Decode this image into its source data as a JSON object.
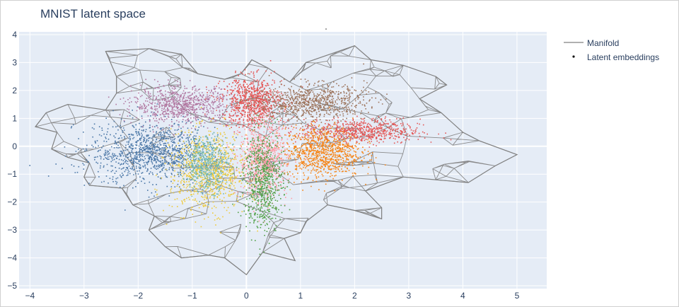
{
  "chart_data": {
    "type": "scatter",
    "title": "MNIST latent space",
    "xlabel": "",
    "ylabel": "",
    "xlim": [
      -4.2,
      5.55
    ],
    "ylim": [
      -5.1,
      4.1
    ],
    "xticks": [
      -4,
      -3,
      -2,
      -1,
      0,
      1,
      2,
      3,
      4,
      5
    ],
    "yticks": [
      -5,
      -4,
      -3,
      -2,
      -1,
      0,
      1,
      2,
      3,
      4
    ],
    "grid": true,
    "legend_position": "top-right",
    "series": [
      {
        "name": "Manifold",
        "mode": "lines",
        "color": "#808080",
        "outline": [
          [
            -3.7,
            1.2
          ],
          [
            -3.3,
            1.5
          ],
          [
            -2.6,
            1.3
          ],
          [
            -2.4,
            1.9
          ],
          [
            -2.4,
            2.5
          ],
          [
            -2.6,
            3.4
          ],
          [
            -1.8,
            3.5
          ],
          [
            -1.2,
            3.3
          ],
          [
            -0.9,
            2.6
          ],
          [
            -0.4,
            2.4
          ],
          [
            -0.1,
            2.6
          ],
          [
            0.1,
            3.1
          ],
          [
            0.4,
            2.8
          ],
          [
            0.8,
            2.3
          ],
          [
            1.1,
            3.0
          ],
          [
            1.7,
            3.4
          ],
          [
            2.0,
            3.6
          ],
          [
            2.3,
            3.1
          ],
          [
            2.9,
            2.9
          ],
          [
            3.5,
            2.5
          ],
          [
            3.7,
            2.2
          ],
          [
            3.2,
            1.7
          ],
          [
            3.6,
            1.2
          ],
          [
            4.0,
            0.5
          ],
          [
            4.3,
            0.2
          ],
          [
            5.0,
            -0.3
          ],
          [
            4.6,
            -0.7
          ],
          [
            4.1,
            -1.3
          ],
          [
            3.5,
            -1.2
          ],
          [
            2.9,
            -1.1
          ],
          [
            2.2,
            -1.6
          ],
          [
            2.5,
            -2.2
          ],
          [
            2.5,
            -2.6
          ],
          [
            2.0,
            -2.3
          ],
          [
            1.5,
            -2.1
          ],
          [
            1.1,
            -2.7
          ],
          [
            1.0,
            -3.1
          ],
          [
            0.7,
            -3.3
          ],
          [
            0.9,
            -4.1
          ],
          [
            0.3,
            -3.8
          ],
          [
            0.0,
            -4.6
          ],
          [
            -0.4,
            -4.0
          ],
          [
            -0.7,
            -3.9
          ],
          [
            -1.2,
            -4.0
          ],
          [
            -1.5,
            -3.6
          ],
          [
            -1.8,
            -3.0
          ],
          [
            -1.7,
            -2.5
          ],
          [
            -2.1,
            -2.1
          ],
          [
            -2.3,
            -1.5
          ],
          [
            -2.9,
            -1.4
          ],
          [
            -3.0,
            -1.1
          ],
          [
            -2.9,
            -0.6
          ],
          [
            -3.3,
            -0.4
          ],
          [
            -3.6,
            -0.1
          ],
          [
            -3.5,
            0.5
          ],
          [
            -3.9,
            0.7
          ],
          [
            -3.7,
            1.2
          ]
        ],
        "interior_edges": 260
      },
      {
        "name": "Latent embeddings",
        "mode": "markers",
        "marker_symbol": "dot",
        "clusters": [
          {
            "color": "#4c78a8",
            "cx": -1.8,
            "cy": -0.2,
            "sx": 0.55,
            "sy": 0.55,
            "n": 1100
          },
          {
            "color": "#b279a2",
            "cx": -1.2,
            "cy": 1.5,
            "sx": 0.45,
            "sy": 0.32,
            "n": 800
          },
          {
            "color": "#e45756",
            "cx": 0.1,
            "cy": 1.6,
            "sx": 0.28,
            "sy": 0.45,
            "n": 800
          },
          {
            "color": "#9d755d",
            "cx": 1.2,
            "cy": 1.6,
            "sx": 0.5,
            "sy": 0.32,
            "n": 800
          },
          {
            "color": "#e45756",
            "cx": 2.1,
            "cy": 0.55,
            "sx": 0.55,
            "sy": 0.22,
            "n": 650
          },
          {
            "color": "#f58518",
            "cx": 1.4,
            "cy": -0.2,
            "sx": 0.35,
            "sy": 0.45,
            "n": 900
          },
          {
            "color": "#eeca3b",
            "cx": -0.7,
            "cy": -0.9,
            "sx": 0.35,
            "sy": 0.7,
            "n": 900
          },
          {
            "color": "#72b7b2",
            "cx": -0.75,
            "cy": -0.6,
            "sx": 0.2,
            "sy": 0.5,
            "n": 500
          },
          {
            "color": "#ff9da6",
            "cx": 0.3,
            "cy": -0.5,
            "sx": 0.22,
            "sy": 0.65,
            "n": 900
          },
          {
            "color": "#54a24b",
            "cx": 0.3,
            "cy": -1.2,
            "sx": 0.18,
            "sy": 0.9,
            "n": 700
          }
        ]
      }
    ]
  },
  "legend": {
    "manifold": "Manifold",
    "embeddings": "Latent embeddings"
  },
  "colors": {
    "plot_background": "#e5ecf6",
    "grid": "#ffffff",
    "axis_text": "#2a3f5f"
  }
}
